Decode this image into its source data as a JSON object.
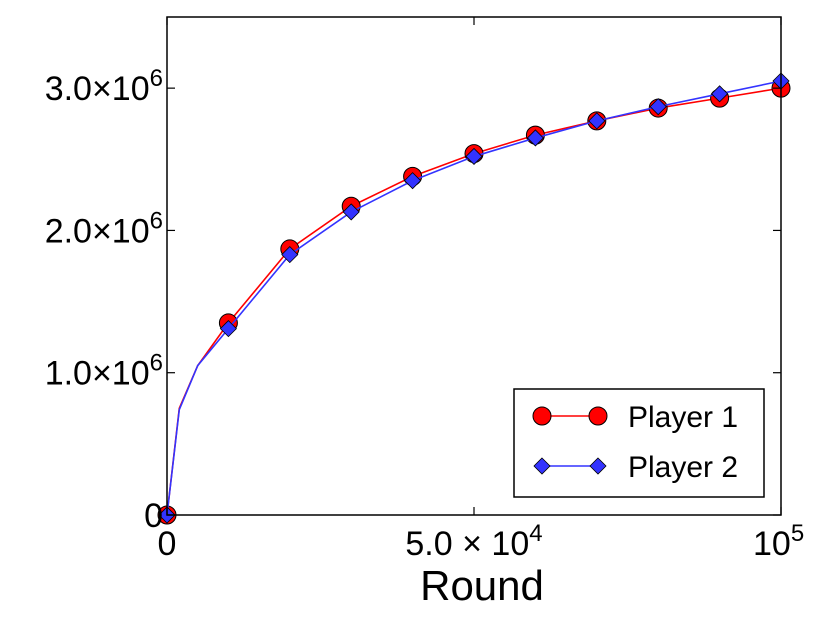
{
  "chart_data": {
    "type": "line",
    "xlabel": "Round",
    "ylabel": "",
    "xlim": [
      0,
      100000
    ],
    "ylim": [
      0,
      3500000
    ],
    "grid": false,
    "legend_position": "lower-right",
    "x_ticks": [
      {
        "value": 0,
        "base": "0",
        "exp": ""
      },
      {
        "value": 50000,
        "base": "5.0 × 10",
        "exp": "4"
      },
      {
        "value": 100000,
        "base": "10",
        "exp": "5"
      }
    ],
    "y_ticks": [
      {
        "value": 0,
        "base": "0",
        "exp": ""
      },
      {
        "value": 1000000,
        "base": "1.0×10",
        "exp": "6"
      },
      {
        "value": 2000000,
        "base": "2.0×10",
        "exp": "6"
      },
      {
        "value": 3000000,
        "base": "3.0×10",
        "exp": "6"
      }
    ],
    "series": [
      {
        "name": "Player 1",
        "color": "#ff0000",
        "marker": "circle",
        "x": [
          0,
          2000,
          5000,
          10000,
          20000,
          30000,
          40000,
          50000,
          60000,
          70000,
          80000,
          90000,
          100000
        ],
        "y": [
          0,
          750000,
          1050000,
          1350000,
          1870000,
          2170000,
          2380000,
          2540000,
          2670000,
          2770000,
          2860000,
          2930000,
          3000000
        ],
        "marker_x": [
          0,
          10000,
          20000,
          30000,
          40000,
          50000,
          60000,
          70000,
          80000,
          90000,
          100000
        ]
      },
      {
        "name": "Player 2",
        "color": "#3333ff",
        "marker": "diamond",
        "x": [
          0,
          2000,
          5000,
          10000,
          20000,
          30000,
          40000,
          50000,
          60000,
          70000,
          80000,
          90000,
          100000
        ],
        "y": [
          0,
          740000,
          1050000,
          1310000,
          1830000,
          2130000,
          2350000,
          2520000,
          2650000,
          2770000,
          2870000,
          2960000,
          3050000
        ],
        "marker_x": [
          0,
          10000,
          20000,
          30000,
          40000,
          50000,
          60000,
          70000,
          80000,
          90000,
          100000
        ]
      }
    ]
  }
}
